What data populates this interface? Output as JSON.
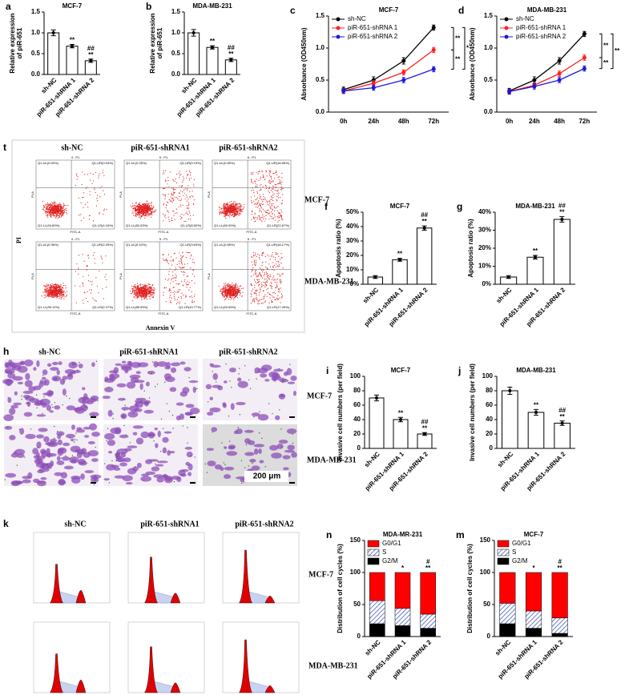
{
  "chart_data": [
    {
      "type": "bar",
      "panel": "a",
      "title": "MCF-7",
      "ylabel": [
        "Relative expression",
        "of piR-651"
      ],
      "categories": [
        "sh-NC",
        "piR-651-shRNA 1",
        "piR-651-shRNA 2"
      ],
      "values": [
        1.0,
        0.68,
        0.33
      ],
      "errors": [
        0.07,
        0.04,
        0.04
      ],
      "annotations": [
        null,
        [
          "**"
        ],
        [
          "##",
          "**"
        ]
      ],
      "color": "#ffffff",
      "ylim": [
        0,
        1.5
      ],
      "yticks": [
        {
          "value": 0,
          "label": "0.0"
        },
        {
          "value": 0.5,
          "label": "0.5"
        },
        {
          "value": 1,
          "label": "1.0"
        },
        {
          "value": 1.5,
          "label": "1.5"
        }
      ]
    },
    {
      "type": "bar",
      "panel": "b",
      "title": "MDA-MB-231",
      "ylabel": [
        "Relative expression",
        "of piR-651"
      ],
      "categories": [
        "sh-NC",
        "piR-651-shRNA 1",
        "piR-651-shRNA 2"
      ],
      "values": [
        1.0,
        0.65,
        0.35
      ],
      "errors": [
        0.08,
        0.04,
        0.04
      ],
      "annotations": [
        null,
        [
          "**"
        ],
        [
          "##",
          "**"
        ]
      ],
      "color": "#ffffff",
      "ylim": [
        0,
        1.5
      ],
      "yticks": [
        {
          "value": 0,
          "label": "0.0"
        },
        {
          "value": 0.5,
          "label": "0.5"
        },
        {
          "value": 1,
          "label": "1.0"
        },
        {
          "value": 1.5,
          "label": "1.5"
        }
      ]
    },
    {
      "type": "line",
      "panel": "c",
      "title": "MCF-7",
      "ylabel": [
        "Absorbance (OD450nm)"
      ],
      "categories": [
        "0h",
        "24h",
        "48h",
        "72h"
      ],
      "series": [
        {
          "name": "sh-NC",
          "color": "#000000",
          "values": [
            0.35,
            0.5,
            0.8,
            1.32
          ],
          "errors": [
            0.04,
            0.05,
            0.05,
            0.04
          ]
        },
        {
          "name": "piR-651-shRNA 1",
          "color": "#ff2020",
          "values": [
            0.33,
            0.45,
            0.62,
            0.97
          ],
          "errors": [
            0.04,
            0.04,
            0.04,
            0.04
          ]
        },
        {
          "name": "piR-651-shRNA 2",
          "color": "#1a1adc",
          "values": [
            0.33,
            0.38,
            0.5,
            0.67
          ],
          "errors": [
            0.04,
            0.04,
            0.04,
            0.04
          ]
        }
      ],
      "bracket_labels": [
        "**",
        "**",
        "*"
      ],
      "ylim": [
        0,
        1.5
      ],
      "yticks": [
        {
          "value": 0,
          "label": "0.0"
        },
        {
          "value": 0.5,
          "label": "0.5"
        },
        {
          "value": 1,
          "label": "1.0"
        },
        {
          "value": 1.5,
          "label": "1.5"
        }
      ]
    },
    {
      "type": "line",
      "panel": "d",
      "title": "MDA-MB-231",
      "ylabel": [
        "Absorbance (OD450nm)"
      ],
      "categories": [
        "0h",
        "24h",
        "48h",
        "72h"
      ],
      "series": [
        {
          "name": "sh-NC",
          "color": "#000000",
          "values": [
            0.33,
            0.5,
            0.8,
            1.22
          ],
          "errors": [
            0.04,
            0.05,
            0.05,
            0.04
          ]
        },
        {
          "name": "piR-651-shRNA 1",
          "color": "#ff2020",
          "values": [
            0.32,
            0.42,
            0.6,
            0.85
          ],
          "errors": [
            0.04,
            0.04,
            0.04,
            0.04
          ]
        },
        {
          "name": "piR-651-shRNA 2",
          "color": "#1a1adc",
          "values": [
            0.32,
            0.4,
            0.5,
            0.68
          ],
          "errors": [
            0.04,
            0.04,
            0.04,
            0.04
          ]
        }
      ],
      "bracket_labels": [
        "**",
        "**",
        "**"
      ],
      "ylim": [
        0,
        1.5
      ],
      "yticks": [
        {
          "value": 0,
          "label": "0.0"
        },
        {
          "value": 0.5,
          "label": "0.5"
        },
        {
          "value": 1,
          "label": "1.0"
        },
        {
          "value": 1.5,
          "label": "1.5"
        }
      ]
    },
    {
      "type": "bar",
      "panel": "f",
      "title": "MCF-7",
      "ylabel": [
        "Apoptosis ratio (%)"
      ],
      "categories": [
        "sh-NC",
        "piR-651-shRNA 1",
        "piR-651-shRNA 2"
      ],
      "values": [
        5,
        17,
        39
      ],
      "errors": [
        1,
        1,
        1.5
      ],
      "annotations": [
        null,
        [
          "**"
        ],
        [
          "##",
          "**"
        ]
      ],
      "color": "#ffffff",
      "ylim": [
        0,
        50
      ],
      "yticks": [
        {
          "value": 0,
          "label": "0%"
        },
        {
          "value": 10,
          "label": "10%"
        },
        {
          "value": 20,
          "label": "20%"
        },
        {
          "value": 30,
          "label": "30%"
        },
        {
          "value": 40,
          "label": "40%"
        },
        {
          "value": 50,
          "label": "50%"
        }
      ]
    },
    {
      "type": "bar",
      "panel": "g",
      "title": "MDA-MB-231",
      "ylabel": [
        "Apoptosis ratio (%)"
      ],
      "categories": [
        "sh-NC",
        "piR-651-shRNA 1",
        "piR-651-shRNA 2"
      ],
      "values": [
        4,
        15,
        36
      ],
      "errors": [
        0.8,
        1,
        1.5
      ],
      "annotations": [
        null,
        [
          "**"
        ],
        [
          "##",
          "**"
        ]
      ],
      "color": "#ffffff",
      "ylim": [
        0,
        40
      ],
      "yticks": [
        {
          "value": 0,
          "label": "0%"
        },
        {
          "value": 10,
          "label": "10%"
        },
        {
          "value": 20,
          "label": "20%"
        },
        {
          "value": 30,
          "label": "30%"
        },
        {
          "value": 40,
          "label": "40%"
        }
      ]
    },
    {
      "type": "bar",
      "panel": "i",
      "title": "MCF-7",
      "ylabel": [
        "Invasive cell numbers (per field)"
      ],
      "categories": [
        "sh-NC",
        "piR-651-shRNA 1",
        "piR-651-shRNA 2"
      ],
      "values": [
        70,
        40,
        20
      ],
      "errors": [
        4,
        3,
        2
      ],
      "annotations": [
        null,
        [
          "**"
        ],
        [
          "##",
          "**"
        ]
      ],
      "color": "#ffffff",
      "ylim": [
        0,
        100
      ],
      "yticks": [
        0,
        20,
        40,
        60,
        80,
        100
      ]
    },
    {
      "type": "bar",
      "panel": "j",
      "title": "MDA-MB-231",
      "ylabel": [
        "Invasive cell numbers (per field)"
      ],
      "categories": [
        "sh-NC",
        "piR-651-shRNA 1",
        "piR-651-shRNA 2"
      ],
      "values": [
        80,
        50,
        35
      ],
      "errors": [
        5,
        4,
        3
      ],
      "annotations": [
        null,
        [
          "**"
        ],
        [
          "##",
          "**"
        ]
      ],
      "color": "#ffffff",
      "ylim": [
        0,
        100
      ],
      "yticks": [
        0,
        20,
        40,
        60,
        80,
        100
      ]
    },
    {
      "type": "stacked_bar",
      "panel": "n",
      "title": "MDA-MR-231",
      "ylabel": [
        "Distribution of cell cycles (%)"
      ],
      "categories": [
        "sh-NC",
        "piR-651-shRNA 1",
        "piR-651-shRNA 2"
      ],
      "series": [
        {
          "name": "G0/G1",
          "color": "#ff0000",
          "values": [
            44,
            56,
            65
          ]
        },
        {
          "name": "S",
          "color": "#3f51b5",
          "pattern": "hatch",
          "values": [
            36,
            27,
            22
          ]
        },
        {
          "name": "G2/M",
          "color": "#000000",
          "values": [
            20,
            17,
            13
          ]
        }
      ],
      "annotations": [
        null,
        [
          "*"
        ],
        [
          "#",
          "**"
        ]
      ],
      "ylim": [
        0,
        150
      ],
      "yticks": [
        0,
        50,
        100,
        150
      ]
    },
    {
      "type": "stacked_bar",
      "panel": "m",
      "title": "MCF-7",
      "ylabel": [
        "Distribution of cell cycles (%)"
      ],
      "categories": [
        "sh-NC",
        "piR-651-shRNA 1",
        "piR-651-shRNA 2"
      ],
      "series": [
        {
          "name": "G0/G1",
          "color": "#ff0000",
          "values": [
            48,
            60,
            71
          ]
        },
        {
          "name": "S",
          "color": "#3f51b5",
          "pattern": "hatch",
          "values": [
            32,
            27,
            24
          ]
        },
        {
          "name": "G2/M",
          "color": "#000000",
          "values": [
            20,
            13,
            5
          ]
        }
      ],
      "annotations": [
        null,
        [
          "*"
        ],
        [
          "#",
          "**"
        ]
      ],
      "ylim": [
        0,
        150
      ],
      "yticks": [
        0,
        50,
        100,
        150
      ]
    }
  ],
  "flow": {
    "panel": "t",
    "columns": [
      "sh-NC",
      "piR-651-shRNA1",
      "piR-651-shRNA2"
    ],
    "rows": [
      "MCF-7",
      "MDA-MB-231"
    ],
    "x_label": "Annexin V",
    "y_label": "PI",
    "plot_x_label": "FITC-A",
    "plot_y_label": "PI-A",
    "plots": [
      [
        {
          "header": "4 : P1",
          "quadrants": [
            "Q1-UL(0.00%)",
            "Q1-UR(0.94%)",
            "Q1-LL(94.60%)",
            "Q1-LR(4.16%)"
          ]
        },
        {
          "header": "5 : P1",
          "quadrants": [
            "Q1-UL(0.25%)",
            "Q1-UR(9.19%)",
            "Q1-LL(82.03%)",
            "Q1-LR(8.52%)"
          ]
        },
        {
          "header": "6 : P1",
          "quadrants": [
            "Q1-UL(0.65%)",
            "Q1-UR(16.56%)",
            "Q1-LL(60.00%)",
            "Q1-LR(22.67%)"
          ]
        }
      ],
      [
        {
          "header": "4 : P1",
          "quadrants": [
            "Q1-UL(0.36%)",
            "Q1-UR(2.25%)",
            "Q1-LL(95.12%)",
            "Q1-LR(2.27%)"
          ]
        },
        {
          "header": "5 : P1",
          "quadrants": [
            "Q1-UL(0.10%)",
            "Q1-UR(3.63%)",
            "Q1-LL(85.53%)",
            "Q1-LR(10.77%)"
          ]
        },
        {
          "header": "6 : P1",
          "quadrants": [
            "Q1-UL(0.65%)",
            "Q1-UR(18.17%)",
            "Q1-LL(63.69%)",
            "Q1-LR(17.49%)"
          ]
        }
      ]
    ]
  },
  "invasion": {
    "panel": "h",
    "columns": [
      "sh-NC",
      "piR-651-shRNA1",
      "piR-651-shRNA2"
    ],
    "rows": [
      "MCF-7",
      "MDA-MB-231"
    ],
    "scale_bar": "200 μm"
  },
  "cell_cycle": {
    "panel": "k",
    "columns": [
      "sh-NC",
      "piR-651-shRNA1",
      "piR-651-shRNA2"
    ],
    "rows": [
      "MCF-7",
      "MDA-MB-231"
    ]
  }
}
